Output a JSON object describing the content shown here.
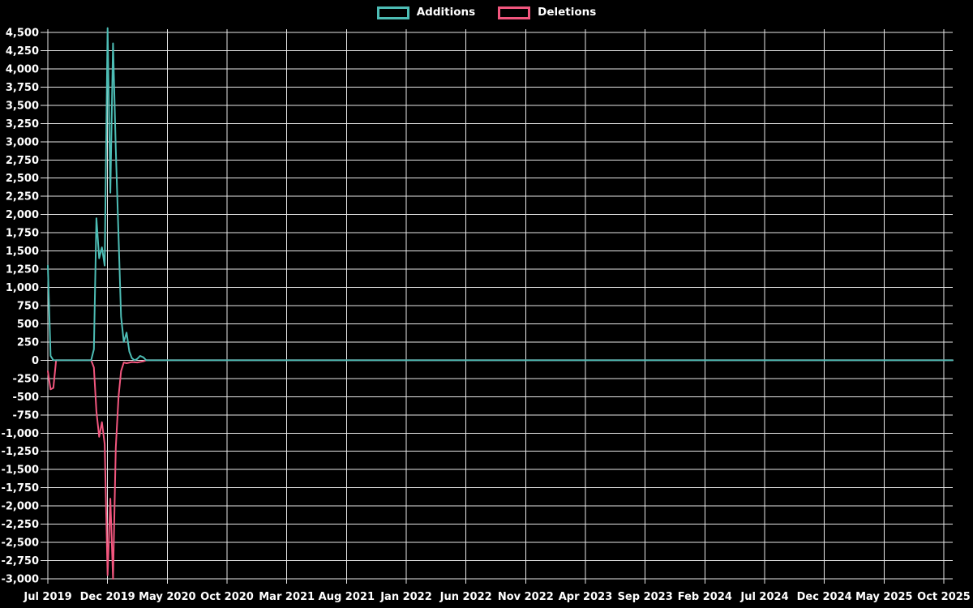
{
  "legend": {
    "items": [
      {
        "label": "Additions",
        "color": "#4dbdb5"
      },
      {
        "label": "Deletions",
        "color": "#f2567e"
      }
    ]
  },
  "colors": {
    "background": "#000000",
    "gridline": "#e8e8e8",
    "text": "#ffffff",
    "additions": "#4dbdb5",
    "deletions": "#f2567e"
  },
  "chart_data": {
    "type": "line",
    "title": "",
    "xlabel": "",
    "ylabel": "",
    "grid": true,
    "legend_position": "top-center",
    "y_axis": {
      "min": -3000,
      "max": 4500,
      "step": 250,
      "tick_labels": [
        "4,500",
        "4,250",
        "4,000",
        "3,750",
        "3,500",
        "3,250",
        "3,000",
        "2,750",
        "2,500",
        "2,250",
        "2,000",
        "1,750",
        "1,500",
        "1,250",
        "1,000",
        "750",
        "500",
        "250",
        "0",
        "-250",
        "-500",
        "-750",
        "-1,000",
        "-1,250",
        "-1,500",
        "-1,750",
        "-2,000",
        "-2,250",
        "-2,500",
        "-2,750",
        "-3,000"
      ]
    },
    "x_axis": {
      "start": "Jul 2019",
      "end": "Oct 2025",
      "tick_interval_months": 5,
      "tick_labels": [
        "Jul 2019",
        "Dec 2019",
        "May 2020",
        "Oct 2020",
        "Mar 2021",
        "Aug 2021",
        "Jan 2022",
        "Jun 2022",
        "Nov 2022",
        "Apr 2023",
        "Sep 2023",
        "Feb 2024",
        "Jul 2024",
        "Dec 2024",
        "May 2025",
        "Oct 2025"
      ]
    },
    "series": [
      {
        "name": "Additions",
        "color": "#4dbdb5",
        "points": [
          [
            "2019-07-01",
            1300
          ],
          [
            "2019-07-08",
            60
          ],
          [
            "2019-07-15",
            0
          ],
          [
            "2019-10-20",
            0
          ],
          [
            "2019-10-27",
            150
          ],
          [
            "2019-11-03",
            1950
          ],
          [
            "2019-11-10",
            1400
          ],
          [
            "2019-11-17",
            1550
          ],
          [
            "2019-11-24",
            1300
          ],
          [
            "2019-12-01",
            4560
          ],
          [
            "2019-12-08",
            2300
          ],
          [
            "2019-12-15",
            4350
          ],
          [
            "2019-12-22",
            2900
          ],
          [
            "2019-12-29",
            1700
          ],
          [
            "2020-01-05",
            600
          ],
          [
            "2020-01-12",
            250
          ],
          [
            "2020-01-19",
            380
          ],
          [
            "2020-01-26",
            120
          ],
          [
            "2020-02-02",
            30
          ],
          [
            "2020-02-09",
            0
          ],
          [
            "2020-02-16",
            20
          ],
          [
            "2020-02-23",
            60
          ],
          [
            "2020-03-01",
            40
          ],
          [
            "2020-03-08",
            0
          ],
          [
            "2025-10-24",
            0
          ]
        ]
      },
      {
        "name": "Deletions",
        "color": "#f2567e",
        "points": [
          [
            "2019-07-01",
            -150
          ],
          [
            "2019-07-08",
            -400
          ],
          [
            "2019-07-15",
            -380
          ],
          [
            "2019-07-22",
            0
          ],
          [
            "2019-10-20",
            0
          ],
          [
            "2019-10-27",
            -100
          ],
          [
            "2019-11-03",
            -700
          ],
          [
            "2019-11-10",
            -1050
          ],
          [
            "2019-11-17",
            -850
          ],
          [
            "2019-11-24",
            -1150
          ],
          [
            "2019-12-01",
            -2950
          ],
          [
            "2019-12-08",
            -1900
          ],
          [
            "2019-12-15",
            -3000
          ],
          [
            "2019-12-22",
            -1200
          ],
          [
            "2019-12-29",
            -500
          ],
          [
            "2020-01-05",
            -150
          ],
          [
            "2020-01-12",
            -30
          ],
          [
            "2020-01-19",
            -40
          ],
          [
            "2020-02-02",
            -25
          ],
          [
            "2020-02-16",
            -30
          ],
          [
            "2020-03-01",
            -15
          ],
          [
            "2020-03-08",
            0
          ],
          [
            "2025-10-24",
            0
          ]
        ]
      }
    ]
  }
}
